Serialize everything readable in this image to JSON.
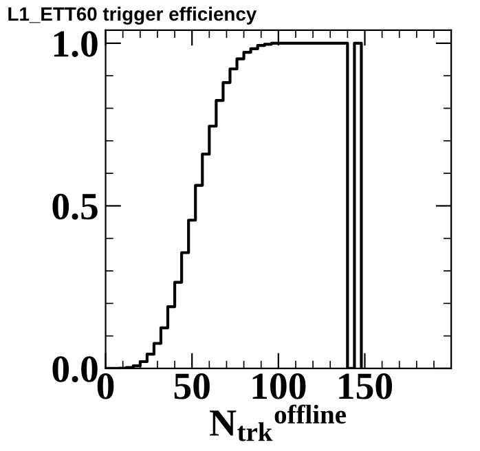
{
  "chart_data": {
    "type": "histogram",
    "title": "L1_ETT60 trigger efficiency",
    "xlabel": "N$_{trk}$$^{offline}$",
    "bins": [
      0,
      4,
      8,
      12,
      16,
      20,
      24,
      28,
      32,
      36,
      40,
      44,
      48,
      52,
      56,
      60,
      64,
      68,
      72,
      76,
      80,
      84,
      88,
      92,
      96,
      100,
      104,
      108,
      112,
      116,
      120,
      124,
      128,
      132,
      136,
      140,
      144,
      148
    ],
    "values": [
      0,
      0,
      0.001,
      0.003,
      0.008,
      0.021,
      0.044,
      0.077,
      0.125,
      0.19,
      0.265,
      0.356,
      0.456,
      0.563,
      0.659,
      0.745,
      0.824,
      0.879,
      0.921,
      0.952,
      0.972,
      0.983,
      0.993,
      0.997,
      1.0,
      1.0,
      1.0,
      1.0,
      1.0,
      1.0,
      1.0,
      1.0,
      1.0,
      1.0,
      1.0,
      0,
      1.0
    ],
    "color": "#000000",
    "xlim": [
      0,
      200
    ],
    "xticks": [
      0,
      50,
      100,
      150
    ],
    "ylim": [
      0,
      1.04
    ],
    "yticks": [
      {
        "value": 0,
        "label": "0.0"
      },
      {
        "value": 0.5,
        "label": "0.5"
      },
      {
        "value": 1.0,
        "label": "1.0"
      }
    ],
    "grid": false,
    "legend": false
  }
}
